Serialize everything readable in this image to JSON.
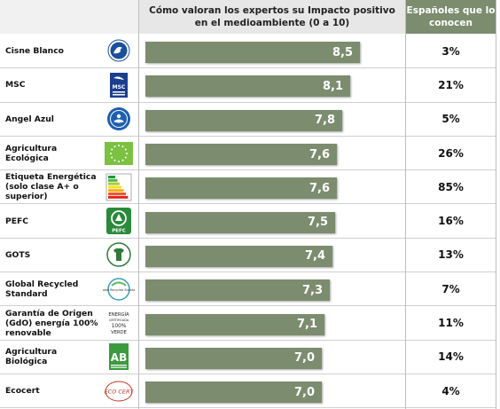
{
  "header": {
    "score_title": "Cómo valoran los expertos su Impacto positivo en el medioambiente (0 a 10)",
    "known_title": "Españoles que lo conocen"
  },
  "colors": {
    "bar": "#7c8c6f",
    "header_accent": "#7c8c6f"
  },
  "chart_data": {
    "type": "bar",
    "orientation": "horizontal",
    "title": "Cómo valoran los expertos su Impacto positivo en el medioambiente (0 a 10)",
    "xlim": [
      0,
      10
    ],
    "categories": [
      "Cisne Blanco",
      "MSC",
      "Angel Azul",
      "Agricultura Ecológica",
      "Etiqueta Energética (solo clase A+ o superior)",
      "PEFC",
      "GOTS",
      "Global Recycled Standard",
      "Garantía de Origen (GdO) energía 100% renovable",
      "Agricultura Biológica",
      "Ecocert"
    ],
    "values": [
      8.5,
      8.1,
      7.8,
      7.6,
      7.6,
      7.5,
      7.4,
      7.3,
      7.1,
      7.0,
      7.0
    ],
    "value_labels": [
      "8,5",
      "8,1",
      "7,8",
      "7,6",
      "7,6",
      "7,5",
      "7,4",
      "7,3",
      "7,1",
      "7,0",
      "7,0"
    ],
    "known_title": "Españoles que lo conocen",
    "known": [
      "3%",
      "21%",
      "5%",
      "26%",
      "85%",
      "16%",
      "13%",
      "7%",
      "11%",
      "14%",
      "4%"
    ]
  },
  "logos": [
    {
      "icon": "nordic-swan-logo"
    },
    {
      "icon": "msc-logo",
      "text": "MSC"
    },
    {
      "icon": "blue-angel-logo"
    },
    {
      "icon": "eu-organic-leaf-logo"
    },
    {
      "icon": "energy-label-logo"
    },
    {
      "icon": "pefc-logo",
      "text": "PEFC"
    },
    {
      "icon": "gots-logo"
    },
    {
      "icon": "global-recycled-standard-logo",
      "text": "Global Recycled Standard"
    },
    {
      "icon": "gdo-logo",
      "line1": "ENERGÍA",
      "line2": "CERTIFICADA",
      "line3": "100%",
      "line4": "VERDE"
    },
    {
      "icon": "ab-logo",
      "text": "AB"
    },
    {
      "icon": "ecocert-logo",
      "text": "ECO CERT"
    }
  ]
}
